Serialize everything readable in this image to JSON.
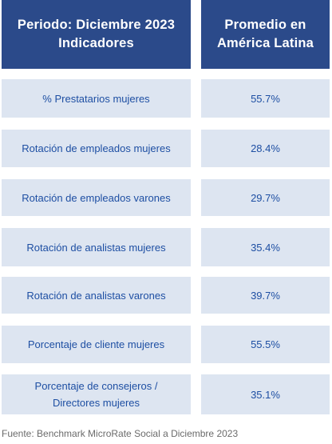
{
  "header": {
    "col1_line1": "Periodo: Diciembre 2023",
    "col1_line2": "Indicadores",
    "col2_line1": "Promedio en",
    "col2_line2": "América Latina"
  },
  "rows": [
    {
      "label": "% Prestatarios mujeres",
      "value": "55.7%"
    },
    {
      "label": "Rotación de empleados mujeres",
      "value": "28.4%"
    },
    {
      "label": "Rotación de empleados varones",
      "value": "29.7%"
    },
    {
      "label": "Rotación de analistas mujeres",
      "value": "35.4%"
    },
    {
      "label": "Rotación de analistas varones",
      "value": "39.7%"
    },
    {
      "label": "Porcentaje de cliente mujeres",
      "value": "55.5%"
    },
    {
      "label_line1": "Porcentaje de consejeros /",
      "label_line2": "Directores mujeres",
      "value": "35.1%"
    }
  ],
  "footer": "Fuente: Benchmark MicroRate Social a Diciembre 2023",
  "colors": {
    "header_bg": "#2b4a8a",
    "cell_bg": "#dde5f1",
    "cell_text": "#1e4fa3"
  }
}
